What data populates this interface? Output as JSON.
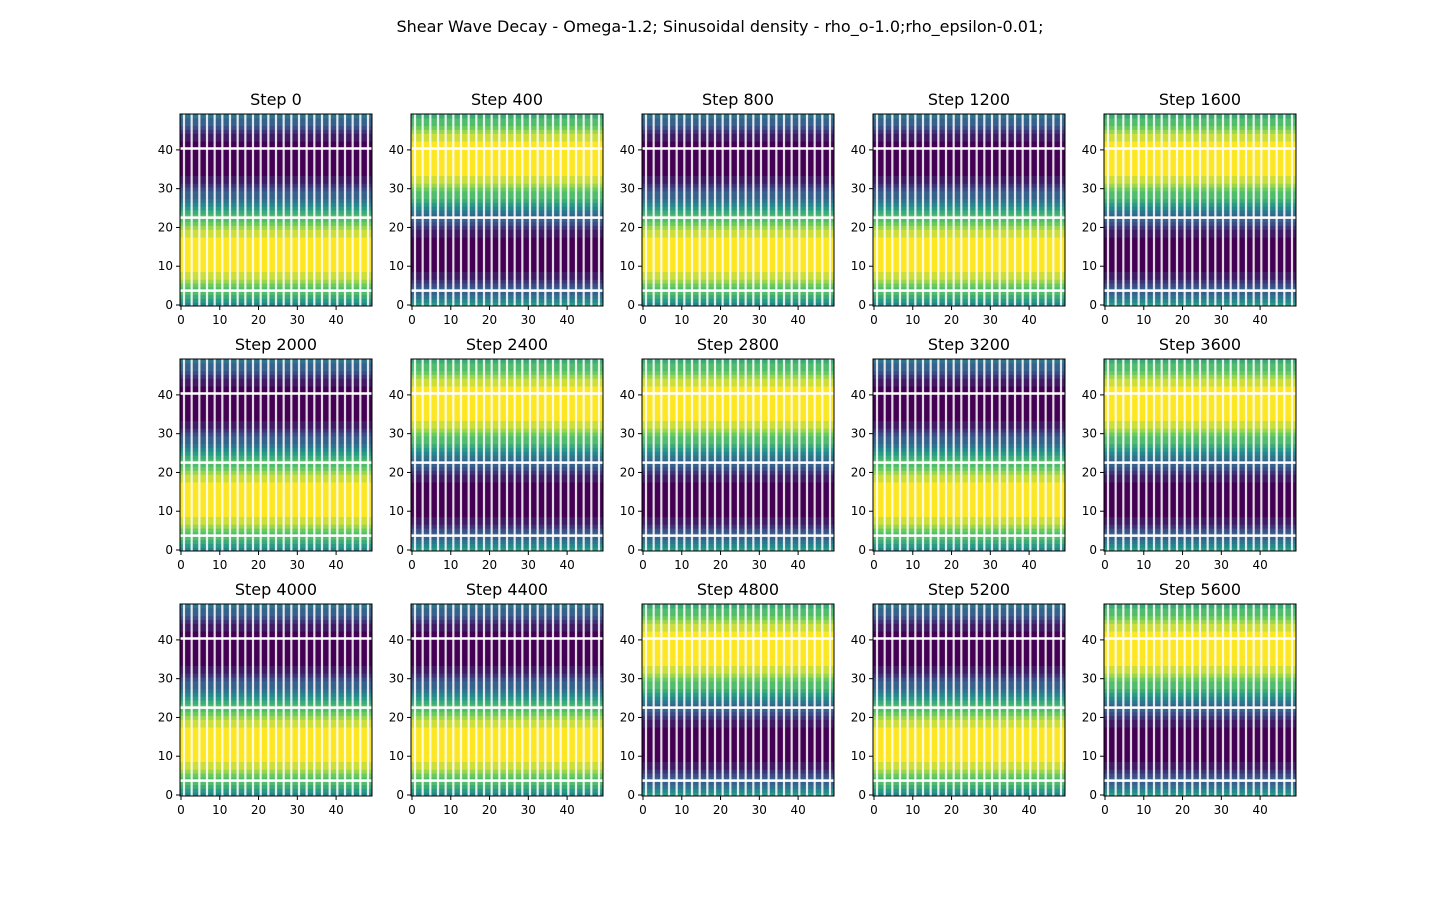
{
  "chart_data": {
    "type": "heatmap",
    "title": "Shear Wave Decay - Omega-1.2; Sinusoidal density - rho_o-1.0;rho_epsilon-0.01;",
    "colormap": [
      "#440154",
      "#3b528b",
      "#21918c",
      "#5ec962",
      "#fde725"
    ],
    "grid": false,
    "grid_size": [
      50,
      50
    ],
    "xlim": [
      0,
      49
    ],
    "ylim": [
      0,
      49
    ],
    "xticks": [
      0,
      10,
      20,
      30,
      40
    ],
    "yticks": [
      0,
      10,
      20,
      30,
      40
    ],
    "panels": [
      {
        "title": "Step 0",
        "phase": 1
      },
      {
        "title": "Step 400",
        "phase": -1
      },
      {
        "title": "Step 800",
        "phase": 1
      },
      {
        "title": "Step 1200",
        "phase": 1
      },
      {
        "title": "Step 1600",
        "phase": -1
      },
      {
        "title": "Step 2000",
        "phase": 1
      },
      {
        "title": "Step 2400",
        "phase": -1
      },
      {
        "title": "Step 2800",
        "phase": -1
      },
      {
        "title": "Step 3200",
        "phase": 1
      },
      {
        "title": "Step 3600",
        "phase": -1
      },
      {
        "title": "Step 4000",
        "phase": 1
      },
      {
        "title": "Step 4400",
        "phase": 1
      },
      {
        "title": "Step 4800",
        "phase": -1
      },
      {
        "title": "Step 5200",
        "phase": 1
      },
      {
        "title": "Step 5600",
        "phase": -1
      }
    ]
  }
}
